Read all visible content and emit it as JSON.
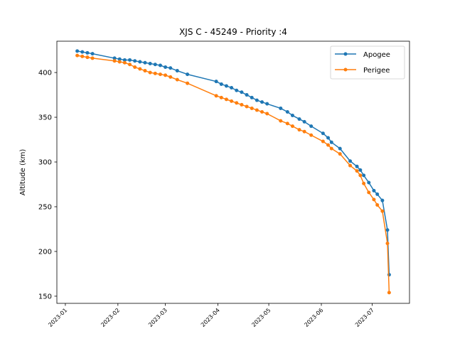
{
  "chart_data": {
    "type": "line",
    "title": "XJS C - 45249 - Priority :4",
    "xlabel": "",
    "ylabel": "Altitude (km)",
    "x_type": "date",
    "xlim": [
      "2022-12-27",
      "2023-07-23"
    ],
    "ylim": [
      142,
      435
    ],
    "xticks": [
      "2023-01",
      "2023-02",
      "2023-03",
      "2023-04",
      "2023-05",
      "2023-06",
      "2023-07"
    ],
    "yticks": [
      150,
      200,
      250,
      300,
      350,
      400
    ],
    "legend_position": "upper right",
    "grid": false,
    "series": [
      {
        "name": "Apogee",
        "color": "#1f77b4",
        "marker": "circle",
        "x": [
          "2023-01-08",
          "2023-01-11",
          "2023-01-14",
          "2023-01-17",
          "2023-01-30",
          "2023-02-02",
          "2023-02-05",
          "2023-02-08",
          "2023-02-11",
          "2023-02-14",
          "2023-02-17",
          "2023-02-20",
          "2023-02-23",
          "2023-02-26",
          "2023-03-01",
          "2023-03-04",
          "2023-03-08",
          "2023-03-14",
          "2023-03-31",
          "2023-04-03",
          "2023-04-06",
          "2023-04-09",
          "2023-04-12",
          "2023-04-15",
          "2023-04-18",
          "2023-04-21",
          "2023-04-24",
          "2023-04-27",
          "2023-04-30",
          "2023-05-08",
          "2023-05-12",
          "2023-05-15",
          "2023-05-19",
          "2023-05-22",
          "2023-05-26",
          "2023-06-02",
          "2023-06-05",
          "2023-06-07",
          "2023-06-12",
          "2023-06-18",
          "2023-06-22",
          "2023-06-24",
          "2023-06-26",
          "2023-06-29",
          "2023-07-02",
          "2023-07-04",
          "2023-07-07",
          "2023-07-10",
          "2023-07-11"
        ],
        "y": [
          424,
          423,
          422,
          421,
          416,
          415,
          414,
          414,
          413,
          412,
          411,
          410,
          409,
          408,
          406,
          405,
          402,
          398,
          390,
          387,
          385,
          383,
          380,
          378,
          375,
          372,
          369,
          367,
          365,
          360,
          356,
          352,
          348,
          345,
          340,
          332,
          327,
          322,
          315,
          301,
          295,
          291,
          285,
          277,
          268,
          264,
          257,
          224,
          174
        ]
      },
      {
        "name": "Perigee",
        "color": "#ff7f0e",
        "marker": "circle",
        "x": [
          "2023-01-08",
          "2023-01-11",
          "2023-01-14",
          "2023-01-17",
          "2023-01-30",
          "2023-02-02",
          "2023-02-05",
          "2023-02-08",
          "2023-02-11",
          "2023-02-14",
          "2023-02-17",
          "2023-02-20",
          "2023-02-23",
          "2023-02-26",
          "2023-03-01",
          "2023-03-04",
          "2023-03-08",
          "2023-03-14",
          "2023-03-31",
          "2023-04-03",
          "2023-04-06",
          "2023-04-09",
          "2023-04-12",
          "2023-04-15",
          "2023-04-18",
          "2023-04-21",
          "2023-04-24",
          "2023-04-27",
          "2023-04-30",
          "2023-05-08",
          "2023-05-12",
          "2023-05-15",
          "2023-05-19",
          "2023-05-22",
          "2023-05-26",
          "2023-06-02",
          "2023-06-05",
          "2023-06-07",
          "2023-06-12",
          "2023-06-18",
          "2023-06-22",
          "2023-06-24",
          "2023-06-26",
          "2023-06-29",
          "2023-07-02",
          "2023-07-04",
          "2023-07-07",
          "2023-07-10",
          "2023-07-11"
        ],
        "y": [
          419,
          418,
          417,
          416,
          413,
          412,
          411,
          409,
          406,
          404,
          402,
          400,
          399,
          398,
          397,
          395,
          392,
          388,
          374,
          372,
          370,
          368,
          366,
          364,
          362,
          360,
          358,
          356,
          354,
          346,
          343,
          340,
          336,
          334,
          330,
          323,
          319,
          315,
          309,
          296,
          290,
          285,
          276,
          266,
          258,
          252,
          245,
          209,
          154
        ]
      }
    ]
  }
}
